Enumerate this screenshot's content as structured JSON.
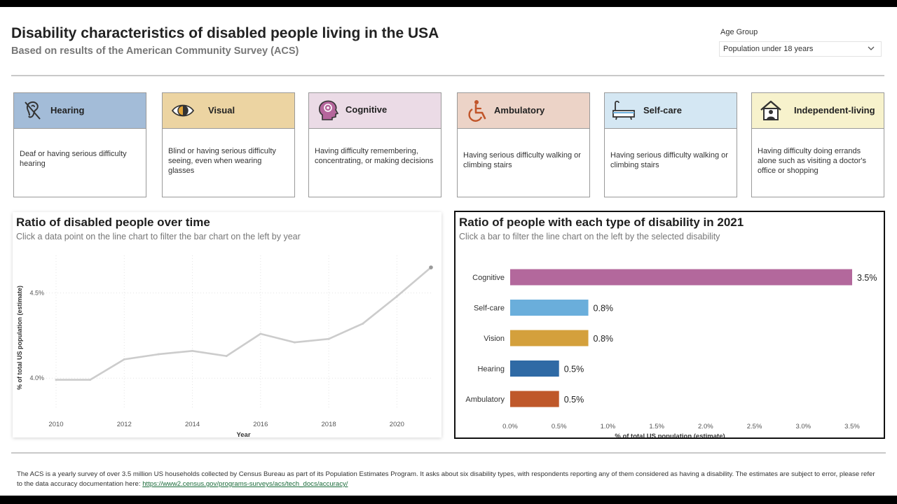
{
  "header": {
    "title": "Disability characteristics of disabled people living in the USA",
    "subtitle": "Based on results of the American Community Survey (ACS)"
  },
  "filter": {
    "label": "Age Group",
    "selected": "Population under 18 years"
  },
  "cards": [
    {
      "title": "Hearing",
      "icon": "hearing-icon",
      "color": "#a3bcd8",
      "description": "Deaf or having serious difficulty hearing"
    },
    {
      "title": "Visual",
      "icon": "eye-icon",
      "color": "#ecd4a2",
      "description": "Blind or having serious difficulty seeing, even when wearing glasses"
    },
    {
      "title": "Cognitive",
      "icon": "brain-head-icon",
      "color": "#ebdbe6",
      "description": "Having difficulty remembering, concentrating, or making decisions"
    },
    {
      "title": "Ambulatory",
      "icon": "wheelchair-icon",
      "color": "#ecd3c7",
      "description": "Having serious difficulty walking or climbing stairs"
    },
    {
      "title": "Self-care",
      "icon": "bathtub-icon",
      "color": "#d4e7f3",
      "description": "Having serious difficulty walking or climbing stairs"
    },
    {
      "title": "Independent-living",
      "icon": "house-person-icon",
      "color": "#f7f2cc",
      "description": "Having difficulty doing errands alone such as visiting a doctor's office or shopping"
    }
  ],
  "line_panel": {
    "title": "Ratio of disabled people over time",
    "subtitle": "Click a data point on the line chart to filter the bar chart on the left by year"
  },
  "bar_panel": {
    "title": "Ratio of people with each type of disability in 2021",
    "subtitle": "Click a bar to filter the line chart on the left by the selected disability"
  },
  "footer": {
    "text": "The ACS is a yearly survey of over 3.5 million US households collected by Census Bureau as part of its Population Estimates Program. It asks about six disability types, with respondents reporting any of them considered as having a disability. The estimates are subject to error, please refer to the data accuracy documentation here: ",
    "link": "https://www2.census.gov/programs-surveys/acs/tech_docs/accuracy/"
  },
  "chart_data": [
    {
      "type": "line",
      "title": "Ratio of disabled people over time",
      "xlabel": "Year",
      "ylabel": "% of total US population (estimate)",
      "x": [
        2010,
        2011,
        2012,
        2013,
        2014,
        2015,
        2016,
        2017,
        2018,
        2019,
        2020,
        2021
      ],
      "values": [
        3.99,
        3.99,
        4.11,
        4.14,
        4.16,
        4.13,
        4.26,
        4.21,
        4.23,
        4.32,
        4.48,
        4.65
      ],
      "xticks": [
        "2010",
        "2012",
        "2014",
        "2016",
        "2018",
        "2020"
      ],
      "yticks": [
        "4.0%",
        "4.5%"
      ],
      "xlim": [
        2010,
        2021
      ],
      "ylim": [
        3.82,
        4.72
      ],
      "color": "#cccccc",
      "grid": true
    },
    {
      "type": "bar",
      "orientation": "horizontal",
      "title": "Ratio of people with each type of disability in 2021",
      "xlabel": "% of total US population (estimate)",
      "categories": [
        "Cognitive",
        "Self-care",
        "Vision",
        "Hearing",
        "Ambulatory"
      ],
      "values": [
        3.5,
        0.8,
        0.8,
        0.5,
        0.5
      ],
      "labels": [
        "3.5%",
        "0.8%",
        "0.8%",
        "0.5%",
        "0.5%"
      ],
      "colors": [
        "#b3689c",
        "#6aaedb",
        "#d4a03c",
        "#2f6aa5",
        "#bf582a"
      ],
      "xticks": [
        "0.0%",
        "0.5%",
        "1.0%",
        "1.5%",
        "2.0%",
        "2.5%",
        "3.0%",
        "3.5%"
      ],
      "xlim": [
        0,
        3.5
      ]
    }
  ]
}
